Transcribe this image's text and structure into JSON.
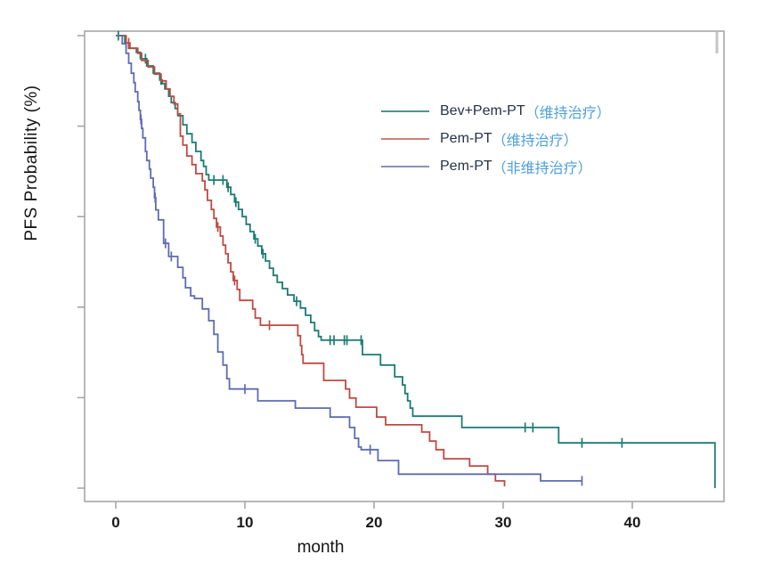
{
  "figure": {
    "background": "#ffffff"
  },
  "chart_data": {
    "type": "line",
    "subtype": "kaplan-meier-step",
    "title": "",
    "xlabel": "month",
    "ylabel": "PFS Probability (%)",
    "x_ticks": [
      0,
      10,
      20,
      30,
      40
    ],
    "y_ticks": [
      0,
      20,
      40,
      60,
      80,
      100
    ],
    "y_tick_labels_shown": false,
    "xlim": [
      -2.4,
      47.1
    ],
    "ylim": [
      0,
      104
    ],
    "grid": false,
    "axis_color": "#a6a6a6",
    "tick_label_color": "#1a1a1a",
    "legend": {
      "position": "upper-right-inside",
      "entries": [
        {
          "id": "bev-pem-pt-weihu",
          "label_en": "Bev+Pem-PT",
          "label_zh": "（维持治疗）",
          "swatch_color": "#4e948b"
        },
        {
          "id": "pem-pt-weihu",
          "label_en": "Pem-PT",
          "label_zh": "（维持治疗）",
          "swatch_color": "#c8827a"
        },
        {
          "id": "pem-pt-feiweihu",
          "label_en": "Pem-PT",
          "label_zh": "（非维持治疗）",
          "swatch_color": "#8a92bd"
        }
      ]
    },
    "series": [
      {
        "id": "bev-pem-pt-weihu",
        "name": "Bev+Pem-PT（维持治疗）",
        "color": "#1b7c72",
        "steps": [
          [
            0,
            100
          ],
          [
            0.7,
            98.4
          ],
          [
            1.0,
            97.2
          ],
          [
            1.6,
            96.3
          ],
          [
            1.9,
            94.9
          ],
          [
            2.4,
            93.3
          ],
          [
            2.9,
            91.7
          ],
          [
            3.4,
            90.2
          ],
          [
            3.6,
            89.4
          ],
          [
            3.8,
            88.2
          ],
          [
            4.1,
            86.6
          ],
          [
            4.3,
            85.2
          ],
          [
            4.6,
            83.9
          ],
          [
            4.8,
            82.3
          ],
          [
            5.2,
            80.3
          ],
          [
            5.5,
            78.3
          ],
          [
            5.9,
            76.4
          ],
          [
            6.2,
            74.4
          ],
          [
            6.6,
            72.4
          ],
          [
            6.8,
            71.1
          ],
          [
            7.0,
            69.3
          ],
          [
            7.2,
            68.1
          ],
          [
            8.6,
            66.5
          ],
          [
            8.9,
            64.9
          ],
          [
            9.2,
            63.2
          ],
          [
            9.5,
            61.6
          ],
          [
            9.8,
            60.0
          ],
          [
            10.1,
            58.3
          ],
          [
            10.4,
            56.7
          ],
          [
            10.7,
            55.1
          ],
          [
            11.0,
            53.5
          ],
          [
            11.3,
            51.8
          ],
          [
            11.6,
            50.2
          ],
          [
            11.9,
            48.6
          ],
          [
            12.2,
            47.0
          ],
          [
            12.5,
            45.5
          ],
          [
            12.9,
            44.1
          ],
          [
            13.3,
            42.7
          ],
          [
            13.8,
            41.3
          ],
          [
            14.3,
            39.8
          ],
          [
            14.7,
            38.2
          ],
          [
            15.1,
            36.6
          ],
          [
            15.4,
            34.8
          ],
          [
            15.7,
            33.5
          ],
          [
            15.9,
            32.7
          ],
          [
            19.1,
            29.5
          ],
          [
            20.5,
            27.2
          ],
          [
            21.6,
            24.6
          ],
          [
            22.2,
            22.8
          ],
          [
            22.4,
            20.9
          ],
          [
            22.6,
            19.3
          ],
          [
            22.8,
            17.7
          ],
          [
            23.0,
            15.9
          ],
          [
            26.8,
            13.4
          ],
          [
            34.3,
            10.0
          ],
          [
            46.4,
            0
          ]
        ],
        "censors": [
          [
            0.2,
            100
          ],
          [
            0.8,
            98.4
          ],
          [
            2.3,
            94.9
          ],
          [
            3.5,
            90.2
          ],
          [
            7.6,
            68.1
          ],
          [
            8.3,
            68.1
          ],
          [
            8.7,
            66.5
          ],
          [
            9.3,
            63.2
          ],
          [
            10.8,
            55.1
          ],
          [
            11.4,
            51.8
          ],
          [
            14.0,
            41.3
          ],
          [
            16.6,
            32.7
          ],
          [
            16.9,
            32.7
          ],
          [
            17.7,
            32.7
          ],
          [
            17.9,
            32.7
          ],
          [
            19.0,
            32.7
          ],
          [
            31.7,
            13.4
          ],
          [
            32.3,
            13.4
          ],
          [
            36.1,
            10.0
          ],
          [
            39.2,
            10.0
          ]
        ]
      },
      {
        "id": "pem-pt-weihu",
        "name": "Pem-PT（维持治疗）",
        "color": "#bf4a42",
        "steps": [
          [
            0,
            100
          ],
          [
            0.8,
            98.4
          ],
          [
            1.1,
            97.2
          ],
          [
            1.7,
            96.1
          ],
          [
            2.0,
            94.5
          ],
          [
            2.5,
            93.1
          ],
          [
            3.0,
            91.5
          ],
          [
            3.5,
            90.0
          ],
          [
            3.9,
            88.2
          ],
          [
            4.2,
            86.6
          ],
          [
            4.5,
            84.9
          ],
          [
            4.8,
            82.7
          ],
          [
            5.0,
            77.8
          ],
          [
            5.2,
            75.8
          ],
          [
            5.5,
            73.4
          ],
          [
            5.9,
            71.5
          ],
          [
            6.2,
            69.5
          ],
          [
            6.7,
            67.9
          ],
          [
            6.9,
            65.9
          ],
          [
            7.1,
            63.6
          ],
          [
            7.4,
            61.6
          ],
          [
            7.6,
            59.6
          ],
          [
            7.8,
            57.7
          ],
          [
            8.1,
            55.7
          ],
          [
            8.3,
            53.7
          ],
          [
            8.5,
            51.8
          ],
          [
            8.7,
            49.8
          ],
          [
            8.9,
            47.8
          ],
          [
            9.1,
            45.9
          ],
          [
            9.4,
            43.9
          ],
          [
            9.6,
            41.5
          ],
          [
            10.6,
            39.6
          ],
          [
            10.8,
            37.6
          ],
          [
            11.2,
            36.0
          ],
          [
            14.1,
            33.7
          ],
          [
            14.3,
            31.5
          ],
          [
            14.4,
            29.5
          ],
          [
            14.5,
            27.6
          ],
          [
            16.1,
            23.8
          ],
          [
            17.8,
            21.9
          ],
          [
            18.1,
            19.9
          ],
          [
            18.6,
            17.9
          ],
          [
            20.2,
            15.7
          ],
          [
            20.9,
            14.0
          ],
          [
            23.7,
            12.4
          ],
          [
            24.3,
            10.4
          ],
          [
            24.8,
            8.5
          ],
          [
            25.4,
            6.5
          ],
          [
            27.4,
            4.9
          ],
          [
            28.8,
            3.1
          ],
          [
            29.4,
            1.6
          ],
          [
            30.1,
            0.4
          ]
        ],
        "censors": [
          [
            1.0,
            98.4
          ],
          [
            7.9,
            57.7
          ],
          [
            9.2,
            45.9
          ],
          [
            11.9,
            36.0
          ]
        ]
      },
      {
        "id": "pem-pt-feiweihu",
        "name": "Pem-PT（非维持治疗）",
        "color": "#5e6bb2",
        "steps": [
          [
            0,
            100
          ],
          [
            0.5,
            98.2
          ],
          [
            0.8,
            96.1
          ],
          [
            1.0,
            93.9
          ],
          [
            1.2,
            91.7
          ],
          [
            1.4,
            89.6
          ],
          [
            1.5,
            87.6
          ],
          [
            1.7,
            85.4
          ],
          [
            1.8,
            83.5
          ],
          [
            1.9,
            81.5
          ],
          [
            2.0,
            79.5
          ],
          [
            2.1,
            77.4
          ],
          [
            2.3,
            74.4
          ],
          [
            2.4,
            72.4
          ],
          [
            2.6,
            70.5
          ],
          [
            2.7,
            68.5
          ],
          [
            2.9,
            66.5
          ],
          [
            3.0,
            64.2
          ],
          [
            3.1,
            61.5
          ],
          [
            3.3,
            59.3
          ],
          [
            3.7,
            54.1
          ],
          [
            4.1,
            51.2
          ],
          [
            4.8,
            48.8
          ],
          [
            5.2,
            46.5
          ],
          [
            5.4,
            44.3
          ],
          [
            5.8,
            42.5
          ],
          [
            6.1,
            41.9
          ],
          [
            6.7,
            39.6
          ],
          [
            7.2,
            37.0
          ],
          [
            7.6,
            34.0
          ],
          [
            7.9,
            30.1
          ],
          [
            8.3,
            27.2
          ],
          [
            8.6,
            24.2
          ],
          [
            8.8,
            21.9
          ],
          [
            11.0,
            19.3
          ],
          [
            13.9,
            17.7
          ],
          [
            16.6,
            15.7
          ],
          [
            18.1,
            13.4
          ],
          [
            18.5,
            11.0
          ],
          [
            18.8,
            9.1
          ],
          [
            19.0,
            8.5
          ],
          [
            20.3,
            6.1
          ],
          [
            21.9,
            3.1
          ],
          [
            32.9,
            1.6
          ],
          [
            36.1,
            1.6
          ]
        ],
        "censors": [
          [
            1.95,
            81.5
          ],
          [
            3.05,
            64.2
          ],
          [
            3.85,
            54.1
          ],
          [
            4.3,
            51.2
          ],
          [
            10.0,
            21.9
          ],
          [
            19.7,
            8.5
          ],
          [
            36.1,
            1.6
          ]
        ]
      }
    ]
  }
}
